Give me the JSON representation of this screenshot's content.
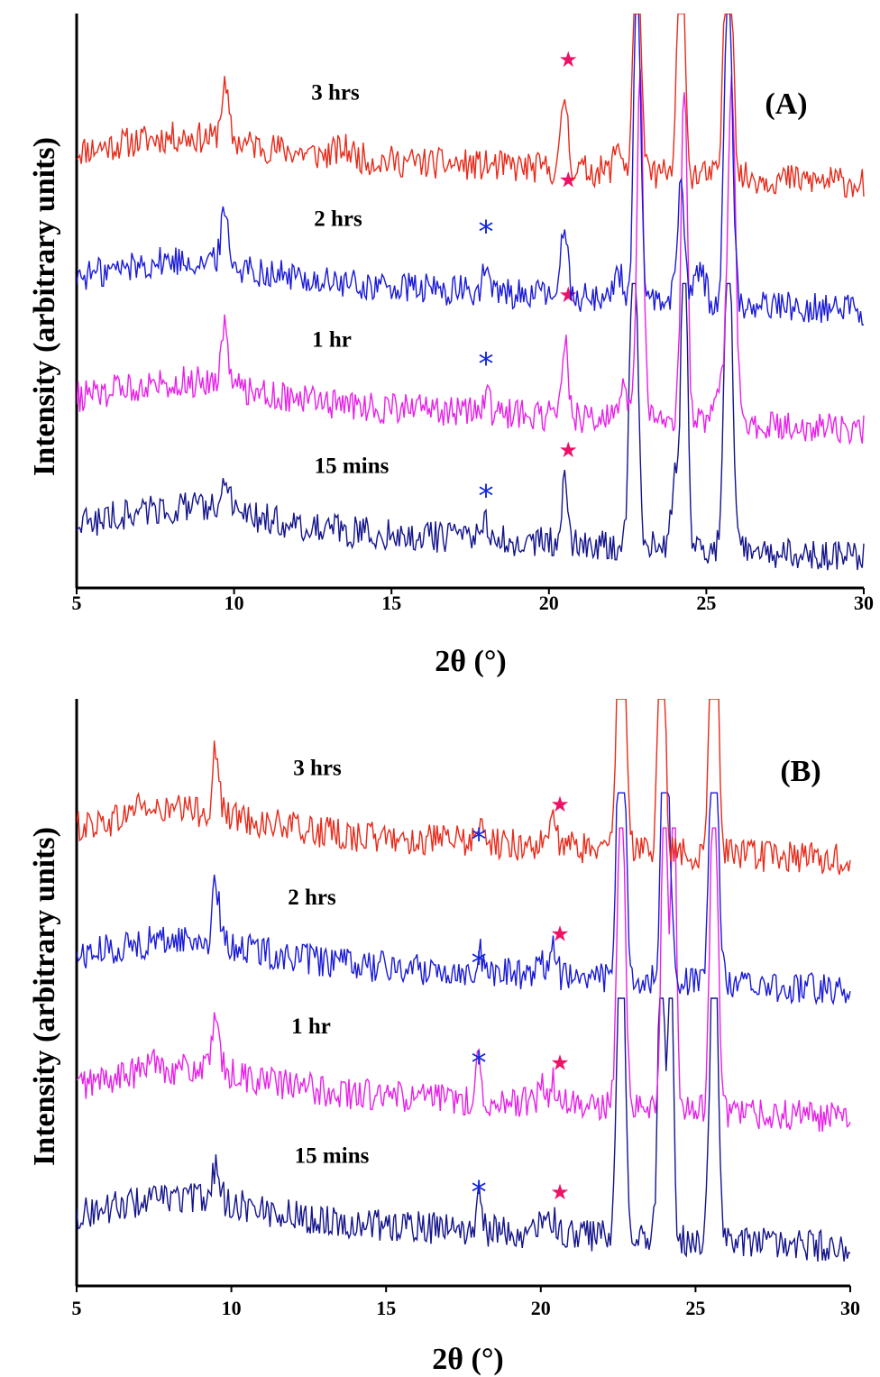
{
  "chart_data": [
    {
      "type": "line",
      "panel_label": "(A)",
      "xlabel": "2θ (°)",
      "ylabel": "Intensity (arbitrary units)",
      "xlim": [
        5,
        30
      ],
      "ylim": [
        0,
        100
      ],
      "xticks": [
        "5",
        "10",
        "15",
        "20",
        "25",
        "30"
      ],
      "series": [
        {
          "label": "3 hrs",
          "color": "#e82a1a",
          "base": 75,
          "clip": 100,
          "peaks": [
            [
              8.4,
              3.5,
              2.2
            ],
            [
              9.7,
              9,
              0.12
            ],
            [
              13.5,
              1.5,
              0.3
            ],
            [
              20.5,
              13,
              0.1
            ],
            [
              22.2,
              5,
              0.12
            ],
            [
              22.8,
              60,
              0.1
            ],
            [
              24.2,
              60,
              0.1
            ],
            [
              25.7,
              60,
              0.12
            ]
          ],
          "markers": [
            {
              "kind": "star",
              "x": 20.5,
              "y": 92
            }
          ]
        },
        {
          "label": "2 hrs",
          "color": "#1a1ad8",
          "base": 53,
          "clip": 100,
          "peaks": [
            [
              8.4,
              4,
              2.2
            ],
            [
              9.7,
              9,
              0.12
            ],
            [
              18.0,
              5,
              0.08
            ],
            [
              20.5,
              13,
              0.1
            ],
            [
              22.2,
              5,
              0.12
            ],
            [
              22.8,
              60,
              0.1
            ],
            [
              24.2,
              20,
              0.12
            ],
            [
              24.8,
              6,
              0.15
            ],
            [
              25.7,
              60,
              0.12
            ]
          ],
          "markers": [
            {
              "kind": "star",
              "x": 20.5,
              "y": 71
            },
            {
              "kind": "ast",
              "x": 18.0,
              "y": 63
            }
          ]
        },
        {
          "label": "1 hr",
          "color": "#e820e8",
          "base": 32,
          "clip": 100,
          "peaks": [
            [
              8.4,
              4,
              2.2
            ],
            [
              9.7,
              10,
              0.12
            ],
            [
              18.0,
              3.5,
              0.1
            ],
            [
              20.5,
              14,
              0.1
            ],
            [
              22.4,
              5,
              0.12
            ],
            [
              22.9,
              60,
              0.1
            ],
            [
              24.3,
              60,
              0.1
            ],
            [
              25.4,
              6,
              0.2
            ],
            [
              25.8,
              60,
              0.12
            ]
          ],
          "markers": [
            {
              "kind": "star",
              "x": 20.5,
              "y": 51
            },
            {
              "kind": "ast",
              "x": 18.0,
              "y": 40
            }
          ]
        },
        {
          "label": "15 mins",
          "color": "#14148c",
          "base": 10,
          "clip": 53,
          "peaks": [
            [
              8.4,
              4,
              2.2
            ],
            [
              9.7,
              5,
              0.15
            ],
            [
              18.0,
              3,
              0.1
            ],
            [
              20.5,
              10,
              0.1
            ],
            [
              22.7,
              60,
              0.12
            ],
            [
              24.0,
              12,
              0.1
            ],
            [
              24.3,
              60,
              0.1
            ],
            [
              25.7,
              60,
              0.12
            ]
          ],
          "markers": [
            {
              "kind": "star",
              "x": 20.5,
              "y": 24
            },
            {
              "kind": "ast",
              "x": 18.0,
              "y": 17
            }
          ]
        }
      ]
    },
    {
      "type": "line",
      "panel_label": "(B)",
      "xlabel": "2θ (°)",
      "ylabel": "Intensity (arbitrary units)",
      "xlim": [
        5,
        30
      ],
      "ylim": [
        0,
        100
      ],
      "xticks": [
        "5",
        "10",
        "15",
        "20",
        "25",
        "30"
      ],
      "series": [
        {
          "label": "3 hrs",
          "color": "#e82a1a",
          "base": 77,
          "clip": 100,
          "peaks": [
            [
              8.4,
              4,
              2.2
            ],
            [
              7.0,
              2,
              0.2
            ],
            [
              9.5,
              11,
              0.1
            ],
            [
              18.0,
              4,
              0.08
            ],
            [
              20.4,
              5,
              0.1
            ],
            [
              22.6,
              60,
              0.12
            ],
            [
              23.9,
              60,
              0.1
            ],
            [
              25.6,
              60,
              0.12
            ]
          ],
          "markers": [
            {
              "kind": "star",
              "x": 20.5,
              "y": 82
            },
            {
              "kind": "ast",
              "x": 18.0,
              "y": 77
            }
          ]
        },
        {
          "label": "2 hrs",
          "color": "#1a1ad8",
          "base": 55,
          "clip": 84,
          "peaks": [
            [
              8.4,
              4,
              2.2
            ],
            [
              9.5,
              10,
              0.1
            ],
            [
              18.0,
              4,
              0.08
            ],
            [
              20.0,
              3.5,
              0.1
            ],
            [
              20.4,
              5,
              0.1
            ],
            [
              22.6,
              60,
              0.12
            ],
            [
              24.0,
              60,
              0.1
            ],
            [
              24.2,
              14,
              0.1
            ],
            [
              25.6,
              60,
              0.12
            ]
          ],
          "markers": [
            {
              "kind": "star",
              "x": 20.5,
              "y": 60
            },
            {
              "kind": "ast",
              "x": 18.0,
              "y": 56
            }
          ]
        },
        {
          "label": "1 hr",
          "color": "#e820e8",
          "base": 33,
          "clip": 78,
          "peaks": [
            [
              8.4,
              4,
              2.2
            ],
            [
              7.5,
              2,
              0.2
            ],
            [
              9.5,
              8,
              0.12
            ],
            [
              18.0,
              8,
              0.08
            ],
            [
              20.0,
              3,
              0.1
            ],
            [
              20.4,
              4,
              0.1
            ],
            [
              22.6,
              60,
              0.12
            ],
            [
              24.0,
              60,
              0.1
            ],
            [
              24.3,
              60,
              0.08
            ],
            [
              25.6,
              60,
              0.12
            ]
          ],
          "markers": [
            {
              "kind": "star",
              "x": 20.5,
              "y": 38
            },
            {
              "kind": "ast",
              "x": 18.0,
              "y": 39
            }
          ]
        },
        {
          "label": "15 mins",
          "color": "#14148c",
          "base": 11,
          "clip": 49,
          "peaks": [
            [
              8.4,
              4,
              2.2
            ],
            [
              9.5,
              6,
              0.12
            ],
            [
              18.0,
              6,
              0.08
            ],
            [
              20.0,
              2.5,
              0.1
            ],
            [
              20.4,
              3,
              0.1
            ],
            [
              22.6,
              60,
              0.12
            ],
            [
              23.9,
              60,
              0.1
            ],
            [
              24.2,
              60,
              0.08
            ],
            [
              25.6,
              60,
              0.12
            ]
          ],
          "markers": [
            {
              "kind": "star",
              "x": 20.5,
              "y": 16
            },
            {
              "kind": "ast",
              "x": 18.0,
              "y": 17
            }
          ]
        }
      ]
    }
  ]
}
